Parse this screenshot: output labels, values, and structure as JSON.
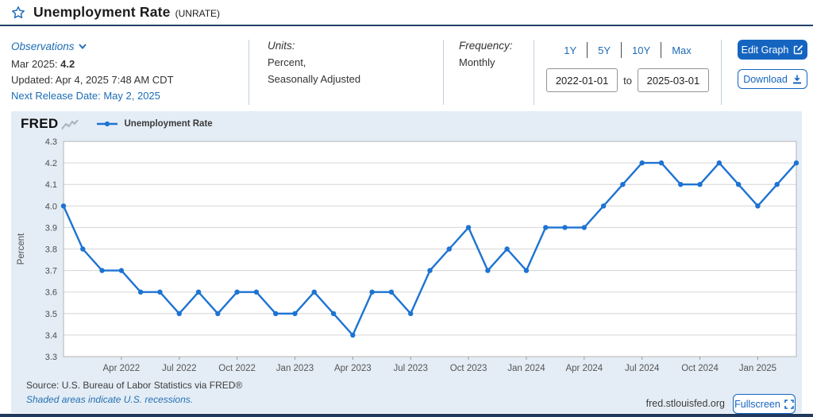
{
  "theme": {
    "link_blue": "#1d6cb5",
    "button_blue": "#1565c0",
    "series_blue": "#1e73d2",
    "card_background": "#e4edf6",
    "title_rule": "#24426b",
    "bottom_bar": "#20395c"
  },
  "header": {
    "title": "Unemployment Rate",
    "series_id": "(UNRATE)"
  },
  "meta": {
    "observations_label": "Observations",
    "latest_label": "Mar 2025:",
    "latest_value": "4.2",
    "updated": "Updated: Apr 4, 2025 7:48 AM CDT",
    "next_release": "Next Release Date: May 2, 2025",
    "units_label": "Units:",
    "units_line1": "Percent,",
    "units_line2": "Seasonally Adjusted",
    "frequency_label": "Frequency:",
    "frequency_value": "Monthly",
    "ranges": [
      "1Y",
      "5Y",
      "10Y",
      "Max"
    ],
    "date_from": "2022-01-01",
    "to_label": "to",
    "date_to": "2025-03-01",
    "edit_graph_label": "Edit Graph",
    "download_label": "Download"
  },
  "chart": {
    "logo": "FRED",
    "legend": "Unemployment Rate"
  },
  "footer": {
    "source": "Source: U.S. Bureau of Labor Statistics via FRED®",
    "recessions": "Shaded areas indicate U.S. recessions.",
    "site": "fred.stlouisfed.org",
    "fullscreen_label": "Fullscreen"
  },
  "chart_data": {
    "type": "line",
    "title": "Unemployment Rate (UNRATE)",
    "xlabel": "",
    "ylabel": "Percent",
    "ylim": [
      3.3,
      4.3
    ],
    "yticks": [
      3.3,
      3.4,
      3.5,
      3.6,
      3.7,
      3.8,
      3.9,
      4.0,
      4.1,
      4.2,
      4.3
    ],
    "grid": true,
    "legend_position": "top-left",
    "series_color": "#1e73d2",
    "grid_color": "#d5d5d5",
    "border_color": "#b3b3b3",
    "categories": [
      "Jan 2022",
      "Feb 2022",
      "Mar 2022",
      "Apr 2022",
      "May 2022",
      "Jun 2022",
      "Jul 2022",
      "Aug 2022",
      "Sep 2022",
      "Oct 2022",
      "Nov 2022",
      "Dec 2022",
      "Jan 2023",
      "Feb 2023",
      "Mar 2023",
      "Apr 2023",
      "May 2023",
      "Jun 2023",
      "Jul 2023",
      "Aug 2023",
      "Sep 2023",
      "Oct 2023",
      "Nov 2023",
      "Dec 2023",
      "Jan 2024",
      "Feb 2024",
      "Mar 2024",
      "Apr 2024",
      "May 2024",
      "Jun 2024",
      "Jul 2024",
      "Aug 2024",
      "Sep 2024",
      "Oct 2024",
      "Nov 2024",
      "Dec 2024",
      "Jan 2025",
      "Feb 2025",
      "Mar 2025"
    ],
    "x_ticks": [
      "Apr 2022",
      "Jul 2022",
      "Oct 2022",
      "Jan 2023",
      "Apr 2023",
      "Jul 2023",
      "Oct 2023",
      "Jan 2024",
      "Apr 2024",
      "Jul 2024",
      "Oct 2024",
      "Jan 2025"
    ],
    "series": [
      {
        "name": "Unemployment Rate",
        "values": [
          4.0,
          3.8,
          3.7,
          3.7,
          3.6,
          3.6,
          3.5,
          3.6,
          3.5,
          3.6,
          3.6,
          3.5,
          3.5,
          3.6,
          3.5,
          3.4,
          3.6,
          3.6,
          3.5,
          3.7,
          3.8,
          3.9,
          3.7,
          3.8,
          3.7,
          3.9,
          3.9,
          3.9,
          4.0,
          4.1,
          4.2,
          4.2,
          4.1,
          4.1,
          4.2,
          4.1,
          4.0,
          4.1,
          4.2
        ]
      }
    ]
  }
}
